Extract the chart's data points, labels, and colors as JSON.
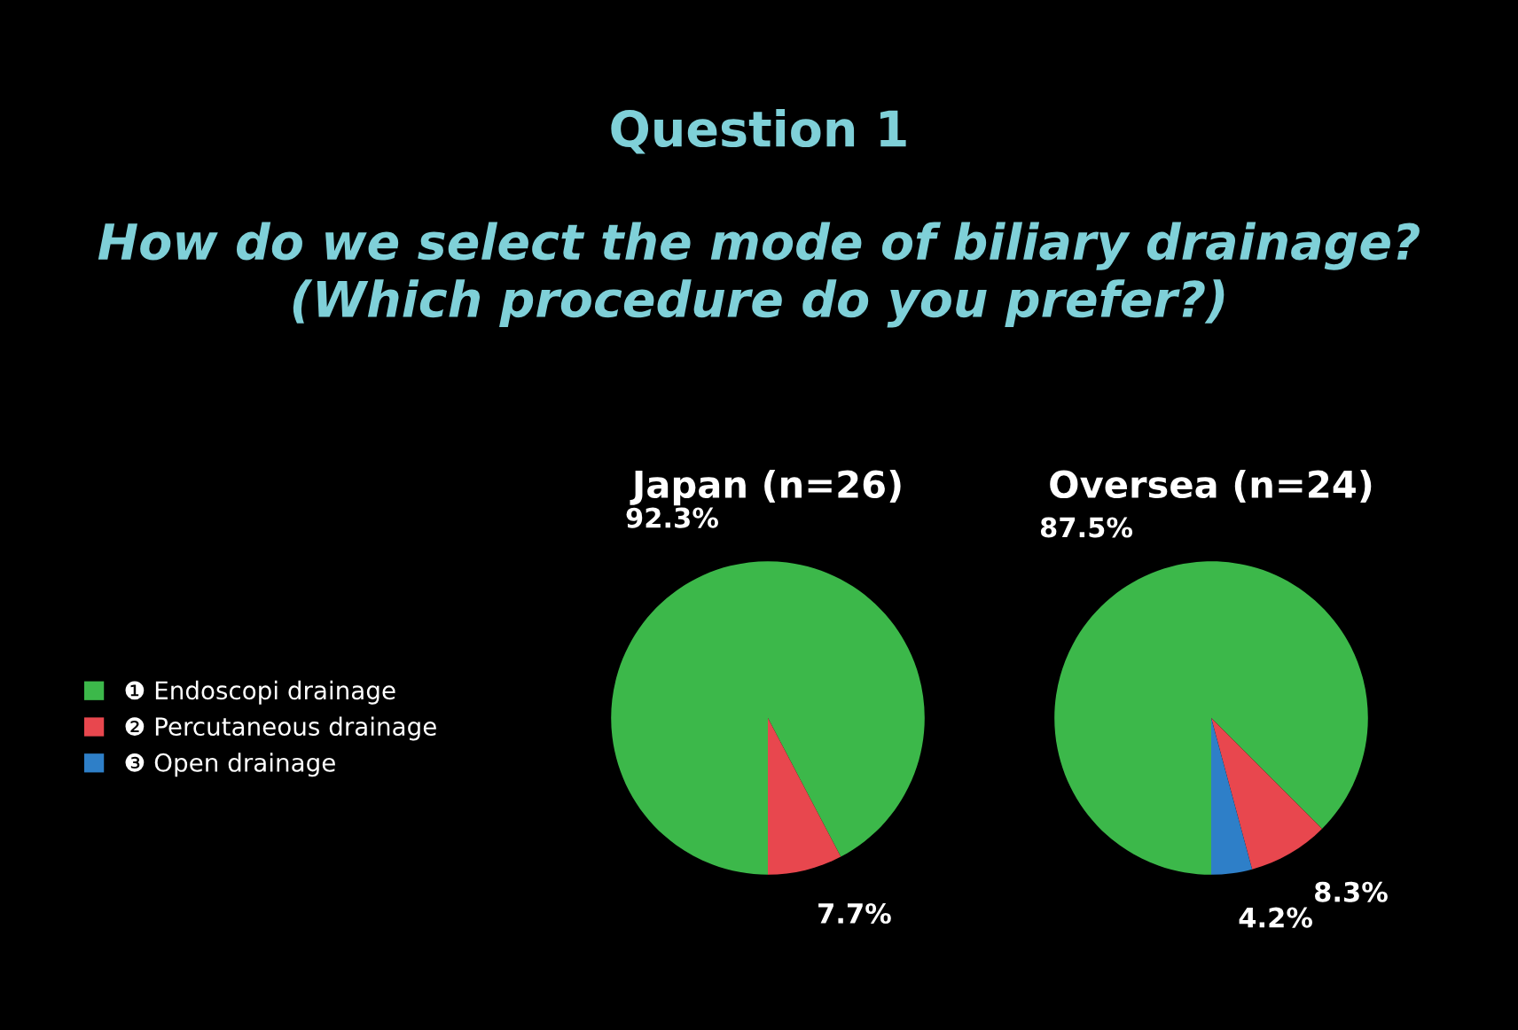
{
  "chart_data": [
    {
      "type": "other",
      "title": "Question 1",
      "subtitle": "How do we select the mode of biliary drainage?\n(Which procedure do you prefer?)"
    },
    {
      "type": "pie",
      "title": "Japan (n=26)",
      "categories": [
        "❶ Endoscopi drainage",
        "❷ Percutaneous drainage",
        "❸ Open drainage"
      ],
      "values": [
        92.3,
        7.7,
        0
      ],
      "colors": [
        "#3cb84a",
        "#e8474e",
        "#2e7fc8"
      ],
      "value_labels": [
        "92.3%",
        "7.7%",
        null
      ],
      "legend": "left"
    },
    {
      "type": "pie",
      "title": "Oversea (n=24)",
      "categories": [
        null,
        null,
        null
      ],
      "values": [
        87.5,
        8.3,
        4.2
      ],
      "colors": [
        "#3cb84a",
        "#e8474e",
        "#2e7fc8"
      ],
      "value_labels": [
        "87.5%",
        "8.3%",
        "4.2%"
      ]
    }
  ]
}
